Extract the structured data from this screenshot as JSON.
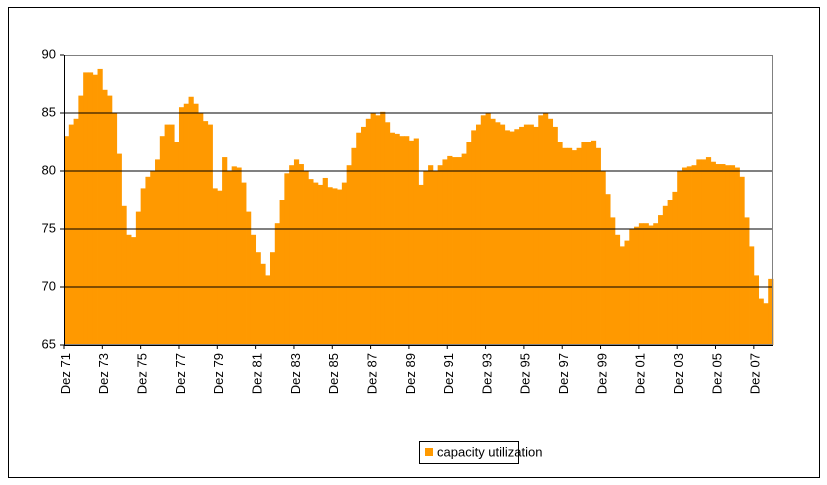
{
  "chart_data": {
    "type": "bar",
    "categories": [
      "Dez 71",
      null,
      null,
      null,
      null,
      null,
      null,
      null,
      "Dez 73",
      null,
      null,
      null,
      null,
      null,
      null,
      null,
      "Dez 75",
      null,
      null,
      null,
      null,
      null,
      null,
      null,
      "Dez 77",
      null,
      null,
      null,
      null,
      null,
      null,
      null,
      "Dez 79",
      null,
      null,
      null,
      null,
      null,
      null,
      null,
      "Dez 81",
      null,
      null,
      null,
      null,
      null,
      null,
      null,
      "Dez 83",
      null,
      null,
      null,
      null,
      null,
      null,
      null,
      "Dez 85",
      null,
      null,
      null,
      null,
      null,
      null,
      null,
      "Dez 87",
      null,
      null,
      null,
      null,
      null,
      null,
      null,
      "Dez 89",
      null,
      null,
      null,
      null,
      null,
      null,
      null,
      "Dez 91",
      null,
      null,
      null,
      null,
      null,
      null,
      null,
      "Dez 93",
      null,
      null,
      null,
      null,
      null,
      null,
      null,
      "Dez 95",
      null,
      null,
      null,
      null,
      null,
      null,
      null,
      "Dez 97",
      null,
      null,
      null,
      null,
      null,
      null,
      null,
      "Dez 99",
      null,
      null,
      null,
      null,
      null,
      null,
      null,
      "Dez 01",
      null,
      null,
      null,
      null,
      null,
      null,
      null,
      "Dez 03",
      null,
      null,
      null,
      null,
      null,
      null,
      null,
      "Dez 05",
      null,
      null,
      null,
      null,
      null,
      null,
      null,
      "Dez 07",
      null,
      null,
      null
    ],
    "series": [
      {
        "name": "capacity utilization",
        "color": "#ff9900",
        "values": [
          83,
          84,
          84.5,
          86.5,
          88.5,
          88.5,
          88.3,
          88.8,
          87,
          86.5,
          85,
          81.5,
          77,
          74.5,
          74.3,
          76.5,
          78.5,
          79.5,
          80,
          81,
          83,
          84,
          84,
          82.5,
          85.5,
          85.8,
          86.4,
          85.8,
          85,
          84.3,
          84,
          78.5,
          78.3,
          81.2,
          80,
          80.4,
          80.3,
          79,
          76.5,
          74.5,
          73,
          72,
          71,
          73,
          75.5,
          77.5,
          79.8,
          80.5,
          81,
          80.6,
          80,
          79.3,
          79,
          78.8,
          79.4,
          78.6,
          78.5,
          78.4,
          79,
          80.5,
          82,
          83.3,
          83.8,
          84.5,
          85,
          84.8,
          85.1,
          84.2,
          83.3,
          83.2,
          83,
          83,
          82.6,
          82.8,
          78.8,
          80,
          80.5,
          80,
          80.5,
          81,
          81.3,
          81.2,
          81.2,
          81.5,
          82.5,
          83.5,
          84,
          84.8,
          85,
          84.5,
          84.2,
          84,
          83.5,
          83.4,
          83.6,
          83.8,
          84,
          84,
          83.8,
          84.8,
          85,
          84.5,
          83.8,
          82.5,
          82,
          82,
          81.8,
          82,
          82.5,
          82.5,
          82.6,
          82,
          80,
          78,
          76,
          74.5,
          73.5,
          74,
          75,
          75.2,
          75.5,
          75.5,
          75.3,
          75.5,
          76.2,
          77,
          77.5,
          78.2,
          80,
          80.3,
          80.4,
          80.5,
          81,
          81,
          81.2,
          80.8,
          80.6,
          80.6,
          80.5,
          80.5,
          80.3,
          79.5,
          76,
          73.5,
          71,
          69,
          68.6,
          70.7
        ]
      }
    ],
    "ylim": [
      65,
      90
    ],
    "yticks": [
      65,
      70,
      75,
      80,
      85,
      90
    ],
    "grid": true,
    "legend": "bottom"
  }
}
